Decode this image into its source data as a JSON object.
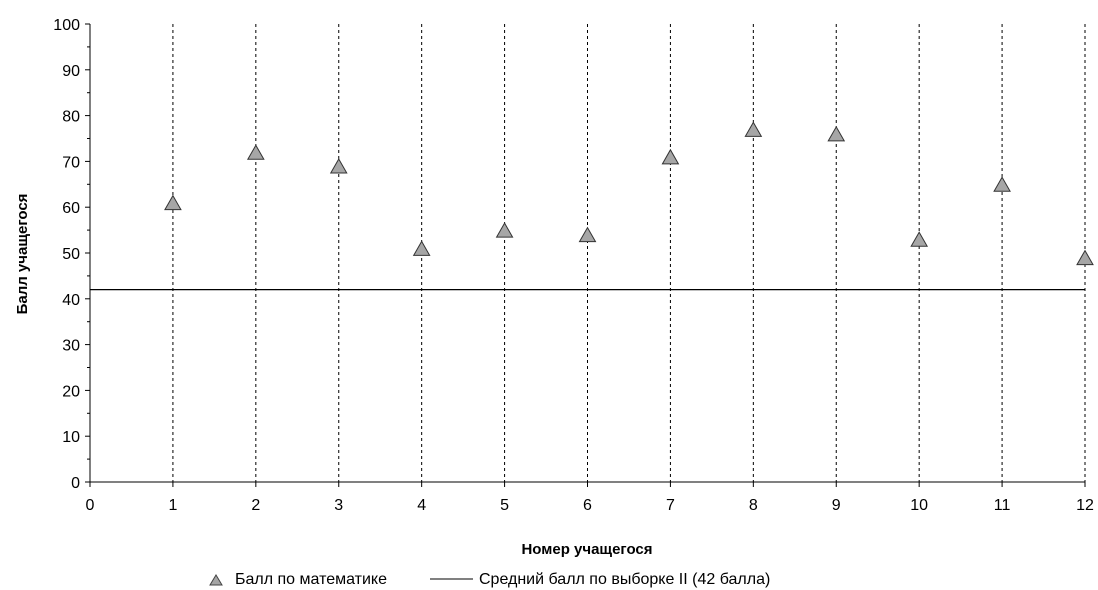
{
  "chart_data": {
    "type": "scatter",
    "x": [
      1,
      2,
      3,
      4,
      5,
      6,
      7,
      8,
      9,
      10,
      11,
      12
    ],
    "series": [
      {
        "name": "Балл по математике",
        "values": [
          61,
          72,
          69,
          51,
          55,
          54,
          71,
          77,
          76,
          53,
          65,
          49
        ],
        "marker": "triangle",
        "color": "#a6a6a6"
      },
      {
        "name": "Средний балл по выборке II (42 балла)",
        "type": "hline",
        "value": 42,
        "color": "#000000"
      }
    ],
    "xlabel": "Номер учащегося",
    "ylabel": "Балл учащегося",
    "xlim": [
      0,
      12
    ],
    "ylim": [
      0,
      100
    ],
    "xticks": [
      "0",
      "1",
      "2",
      "3",
      "4",
      "5",
      "6",
      "7",
      "8",
      "9",
      "10",
      "11",
      "12"
    ],
    "yticks": [
      "0",
      "10",
      "20",
      "30",
      "40",
      "50",
      "60",
      "70",
      "80",
      "90",
      "100"
    ],
    "grid": "vertical dashed at each x",
    "legend_position": "bottom-center",
    "legend_marker": "▲",
    "legend_line": "——"
  }
}
